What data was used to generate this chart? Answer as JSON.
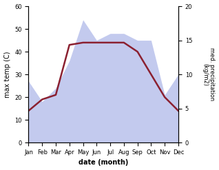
{
  "months": [
    "Jan",
    "Feb",
    "Mar",
    "Apr",
    "May",
    "Jun",
    "Jul",
    "Aug",
    "Sep",
    "Oct",
    "Nov",
    "Dec"
  ],
  "temp_max": [
    14,
    19,
    21,
    43,
    44,
    44,
    44,
    44,
    40,
    30,
    20,
    14
  ],
  "precipitation": [
    9,
    6,
    8,
    12,
    18,
    15,
    16,
    16,
    15,
    15,
    7,
    10
  ],
  "temp_line_color": "#8b2030",
  "fill_color": "#aab4e8",
  "fill_alpha": 0.7,
  "xlabel": "date (month)",
  "ylabel_left": "max temp (C)",
  "ylabel_right": "med. precipitation\n(kg/m2)",
  "ylim_left": [
    0,
    60
  ],
  "ylim_right": [
    0,
    20
  ],
  "bg_color": "#ffffff"
}
